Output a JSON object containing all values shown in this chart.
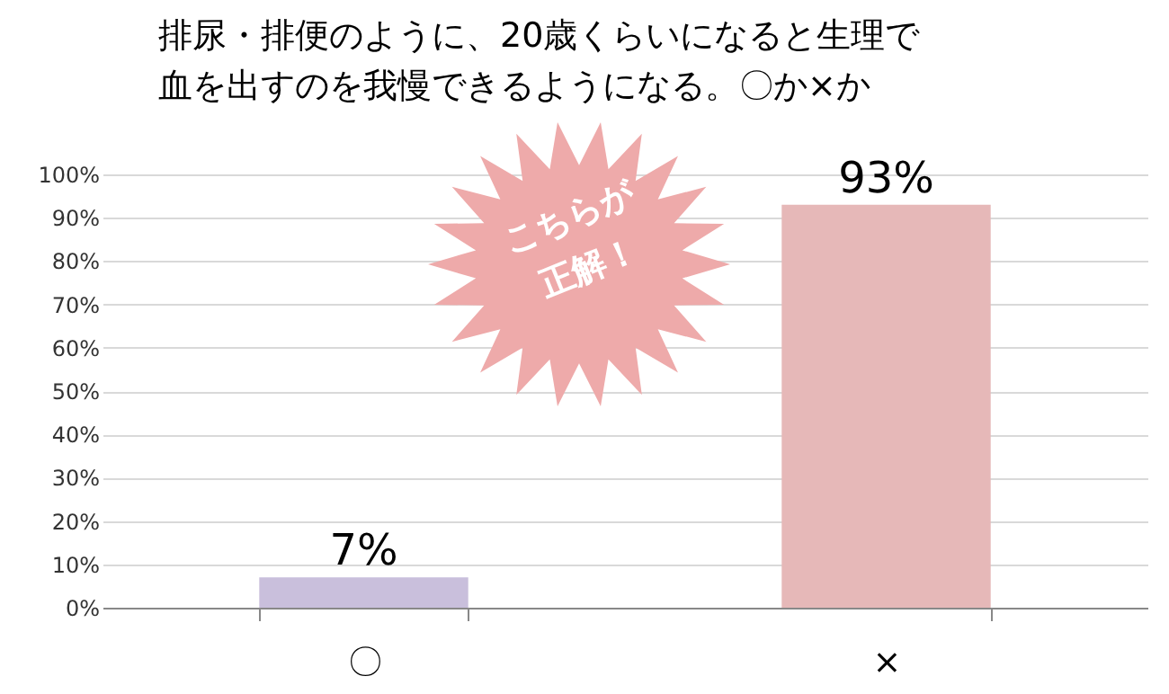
{
  "chart_data": {
    "type": "bar",
    "title": [
      "排尿・排便のように、20歳くらいになると生理で",
      "血を出すのを我慢できるようになる。〇か×か"
    ],
    "categories": [
      "〇",
      "×"
    ],
    "values": [
      7,
      93
    ],
    "colors": [
      "#c9bfdc",
      "#e6b8b8"
    ],
    "value_labels": [
      "7%",
      "93%"
    ],
    "ylim": [
      0,
      100
    ],
    "yticks": [
      {
        "value": 0,
        "label": "0%"
      },
      {
        "value": 10,
        "label": "10%"
      },
      {
        "value": 20,
        "label": "20%"
      },
      {
        "value": 30,
        "label": "30%"
      },
      {
        "value": 40,
        "label": "40%"
      },
      {
        "value": 50,
        "label": "50%"
      },
      {
        "value": 60,
        "label": "60%"
      },
      {
        "value": 70,
        "label": "70%"
      },
      {
        "value": 80,
        "label": "80%"
      },
      {
        "value": 90,
        "label": "90%"
      },
      {
        "value": 100,
        "label": "100%"
      }
    ],
    "grid": "y",
    "legend": false,
    "annotations": [
      "こちらが",
      "正解！"
    ]
  }
}
